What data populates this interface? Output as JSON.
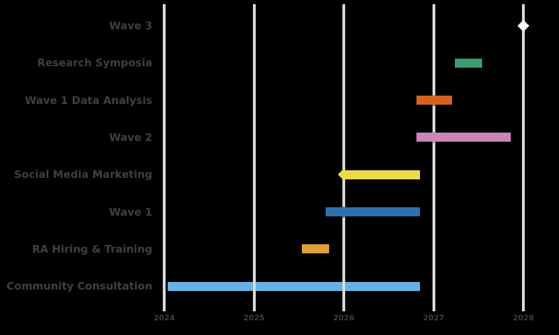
{
  "chart_data": {
    "type": "bar",
    "variant": "gantt-timeline",
    "title": "",
    "xlabel": "",
    "ylabel": "",
    "legend": false,
    "grid": "vertical",
    "x_axis": {
      "range_years": [
        2023.8,
        2028.4
      ],
      "ticks": [
        2024,
        2025,
        2026,
        2027,
        2028
      ],
      "tick_labels": [
        "2024",
        "2025",
        "2026",
        "2027",
        "2028"
      ]
    },
    "tasks": [
      {
        "label": "Wave 3",
        "slug": "wave-3",
        "start": null,
        "end": null,
        "milestone": 2028.0,
        "color": "#f6f6f6"
      },
      {
        "label": "Research Symposia",
        "slug": "research-symposia",
        "start": 2027.24,
        "end": 2027.54,
        "milestone": null,
        "color": "#3d9e71"
      },
      {
        "label": "Wave 1 Data Analysis",
        "slug": "wave-1-data-analysis",
        "start": 2026.81,
        "end": 2027.21,
        "milestone": 2027.0,
        "color": "#d2641f"
      },
      {
        "label": "Wave 2",
        "slug": "wave-2",
        "start": 2026.81,
        "end": 2027.86,
        "milestone": 2027.0,
        "color": "#cc85bb"
      },
      {
        "label": "Social Media Marketing",
        "slug": "social-media-marketing",
        "start": 2026.0,
        "end": 2026.85,
        "milestone": 2026.0,
        "color": "#ecdc4c"
      },
      {
        "label": "Wave 1",
        "slug": "wave-1",
        "start": 2025.8,
        "end": 2026.85,
        "milestone": 2026.0,
        "color": "#2e70ae"
      },
      {
        "label": "RA Hiring & Training",
        "slug": "ra-hiring-training",
        "start": 2025.53,
        "end": 2025.84,
        "milestone": null,
        "color": "#dfa13a"
      },
      {
        "label": "Community Consultation",
        "slug": "community-consultation",
        "start": 2024.04,
        "end": 2026.85,
        "milestone": null,
        "color": "#68b1e4"
      }
    ],
    "colors": {
      "background": "#000000",
      "gridline": "#d9d9d9",
      "task_label_text": "#3f3f3f",
      "tick_label_text": "#3d3d3d"
    }
  }
}
